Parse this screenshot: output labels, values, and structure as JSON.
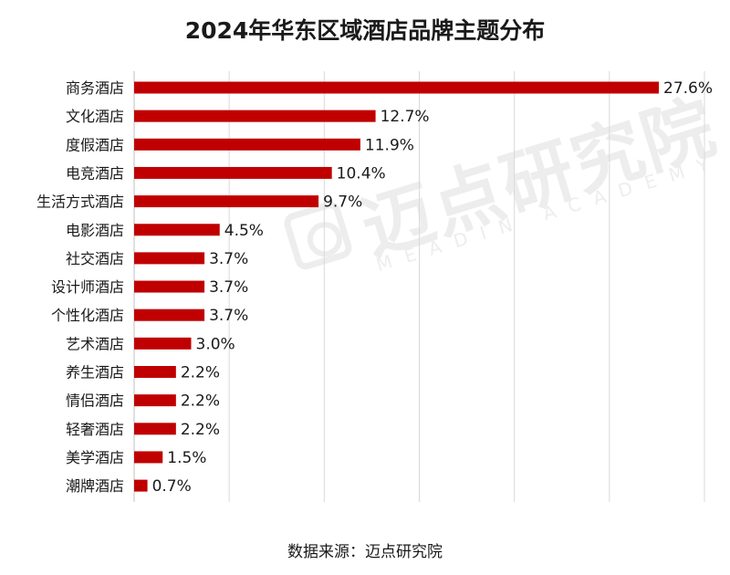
{
  "title": "2024年华东区域酒店品牌主题分布",
  "source": "数据来源：迈点研究院",
  "watermark": {
    "cn": "迈点研究院",
    "en": "MEADIN ACADEMY"
  },
  "colors": {
    "bar": "#c00000",
    "grid": "#d9d9d9",
    "text": "#1a1a1a"
  },
  "chart_data": {
    "type": "bar",
    "orientation": "horizontal",
    "categories": [
      "商务酒店",
      "文化酒店",
      "度假酒店",
      "电竞酒店",
      "生活方式酒店",
      "电影酒店",
      "社交酒店",
      "设计师酒店",
      "个性化酒店",
      "艺术酒店",
      "养生酒店",
      "情侣酒店",
      "轻奢酒店",
      "美学酒店",
      "潮牌酒店"
    ],
    "values": [
      27.6,
      12.7,
      11.9,
      10.4,
      9.7,
      4.5,
      3.7,
      3.7,
      3.7,
      3.0,
      2.2,
      2.2,
      2.2,
      1.5,
      0.7
    ],
    "labels": [
      "27.6%",
      "12.7%",
      "11.9%",
      "10.4%",
      "9.7%",
      "4.5%",
      "3.7%",
      "3.7%",
      "3.7%",
      "3.0%",
      "2.2%",
      "2.2%",
      "2.2%",
      "1.5%",
      "0.7%"
    ],
    "xlim": [
      0,
      30
    ],
    "grid": true
  }
}
